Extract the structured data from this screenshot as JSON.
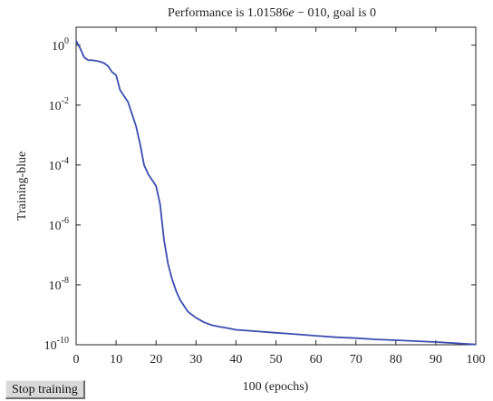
{
  "window": {
    "stop_button_label": "Stop training"
  },
  "colors": {
    "curve": "#3a4db0",
    "axes": "#222222",
    "button_face": "#d9d9d9"
  },
  "chart_data": {
    "type": "line",
    "title_parts": [
      "Performance is 1.01586",
      "e",
      " − 010, goal is 0"
    ],
    "xlabel": "100 (epochs)",
    "ylabel": "Training-blue",
    "xlim": [
      0,
      100
    ],
    "ylim_log10": [
      -10,
      0.6
    ],
    "y_scale": "log",
    "grid": false,
    "x_ticks": [
      0,
      10,
      20,
      30,
      40,
      50,
      60,
      70,
      80,
      90,
      100
    ],
    "y_tick_exponents": [
      0,
      -2,
      -4,
      -6,
      -8,
      -10
    ],
    "y_tick_base": "10",
    "series": [
      {
        "x": [
          0,
          1,
          2,
          3,
          4,
          5,
          6,
          7,
          8,
          9,
          10,
          11,
          12,
          13,
          14,
          15,
          16,
          17,
          18,
          19,
          20,
          21,
          22,
          23,
          24,
          25,
          26,
          27,
          28,
          29,
          30,
          32,
          34,
          36,
          38,
          40,
          45,
          50,
          55,
          60,
          65,
          70,
          75,
          80,
          85,
          90,
          95,
          100
        ],
        "log10_y": [
          0.15,
          -0.1,
          -0.4,
          -0.5,
          -0.5,
          -0.52,
          -0.55,
          -0.6,
          -0.7,
          -0.9,
          -1.0,
          -1.5,
          -1.7,
          -1.9,
          -2.3,
          -2.7,
          -3.3,
          -4.0,
          -4.3,
          -4.5,
          -4.7,
          -5.3,
          -6.5,
          -7.3,
          -7.8,
          -8.2,
          -8.5,
          -8.7,
          -8.9,
          -9.0,
          -9.1,
          -9.25,
          -9.35,
          -9.4,
          -9.45,
          -9.5,
          -9.55,
          -9.6,
          -9.65,
          -9.7,
          -9.75,
          -9.78,
          -9.82,
          -9.85,
          -9.88,
          -9.91,
          -9.95,
          -9.99
        ]
      }
    ]
  }
}
